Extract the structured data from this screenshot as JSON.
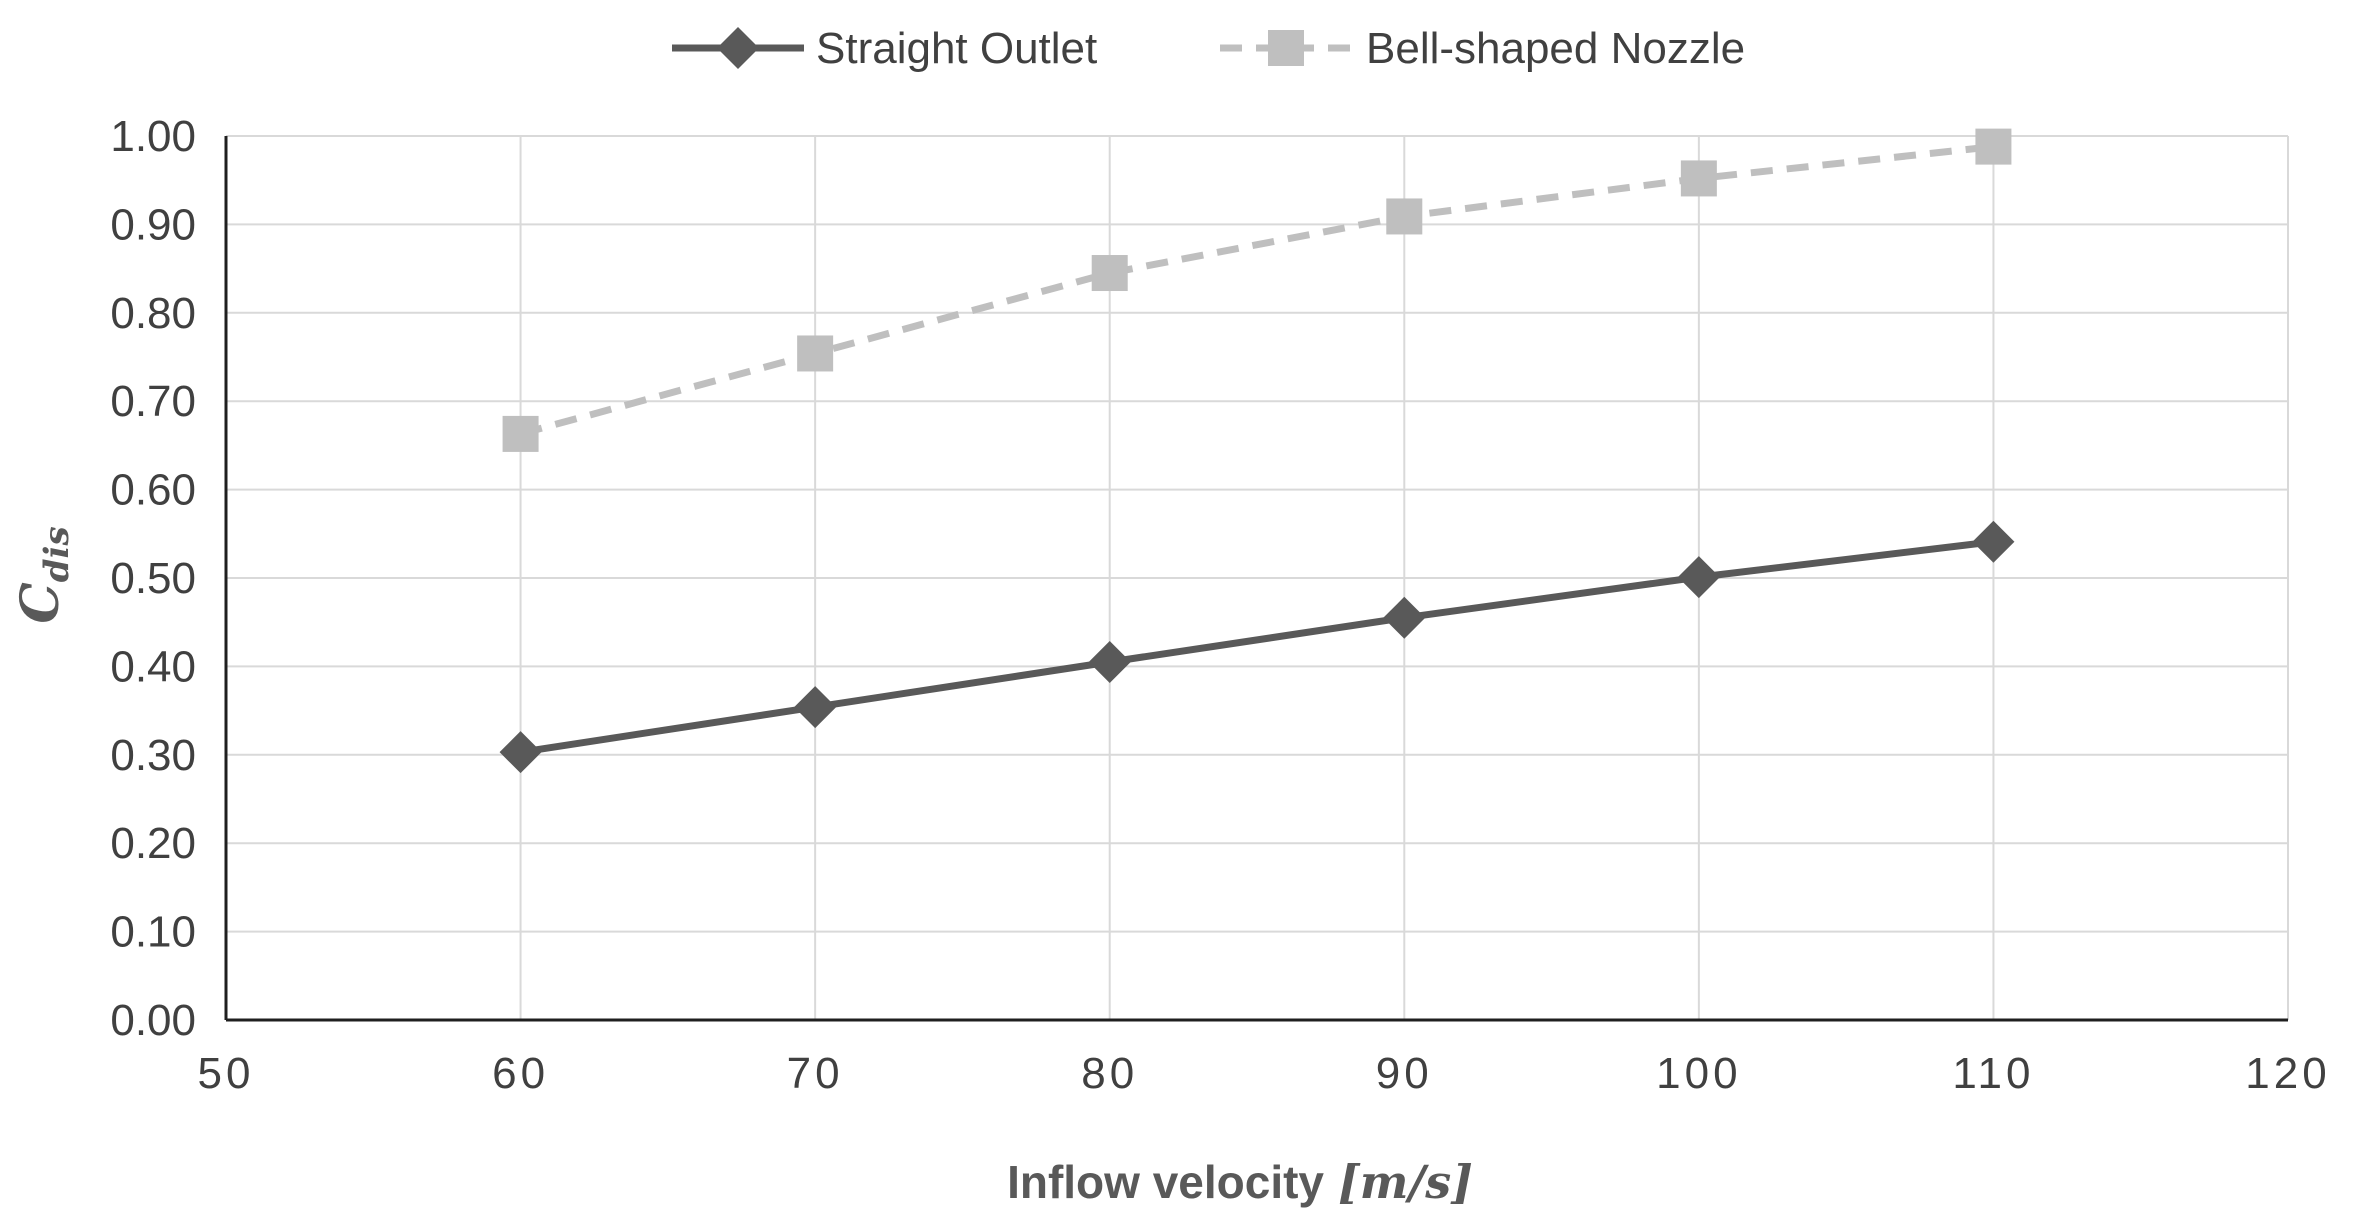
{
  "chart_data": {
    "type": "line",
    "title": "",
    "xlabel": "Inflow velocity",
    "xlabel_unit": "[m/s]",
    "ylabel": "C",
    "ylabel_subscript": "dis",
    "xlim": [
      50,
      120
    ],
    "ylim": [
      0.0,
      1.0
    ],
    "x_ticks": [
      50,
      60,
      70,
      80,
      90,
      100,
      110,
      120
    ],
    "y_ticks": [
      "0.00",
      "0.10",
      "0.20",
      "0.30",
      "0.40",
      "0.50",
      "0.60",
      "0.70",
      "0.80",
      "0.90",
      "1.00"
    ],
    "grid": true,
    "legend_position": "top-center",
    "x": [
      60,
      70,
      80,
      90,
      100,
      110
    ],
    "series": [
      {
        "name": "Straight Outlet",
        "values": [
          0.303,
          0.354,
          0.405,
          0.455,
          0.501,
          0.541
        ],
        "color": "#595959",
        "line_style": "solid",
        "marker": "diamond"
      },
      {
        "name": "Bell-shaped Nozzle",
        "values": [
          0.663,
          0.754,
          0.845,
          0.909,
          0.952,
          0.988
        ],
        "color": "#BFBFBF",
        "line_style": "dashed",
        "marker": "square"
      }
    ]
  }
}
